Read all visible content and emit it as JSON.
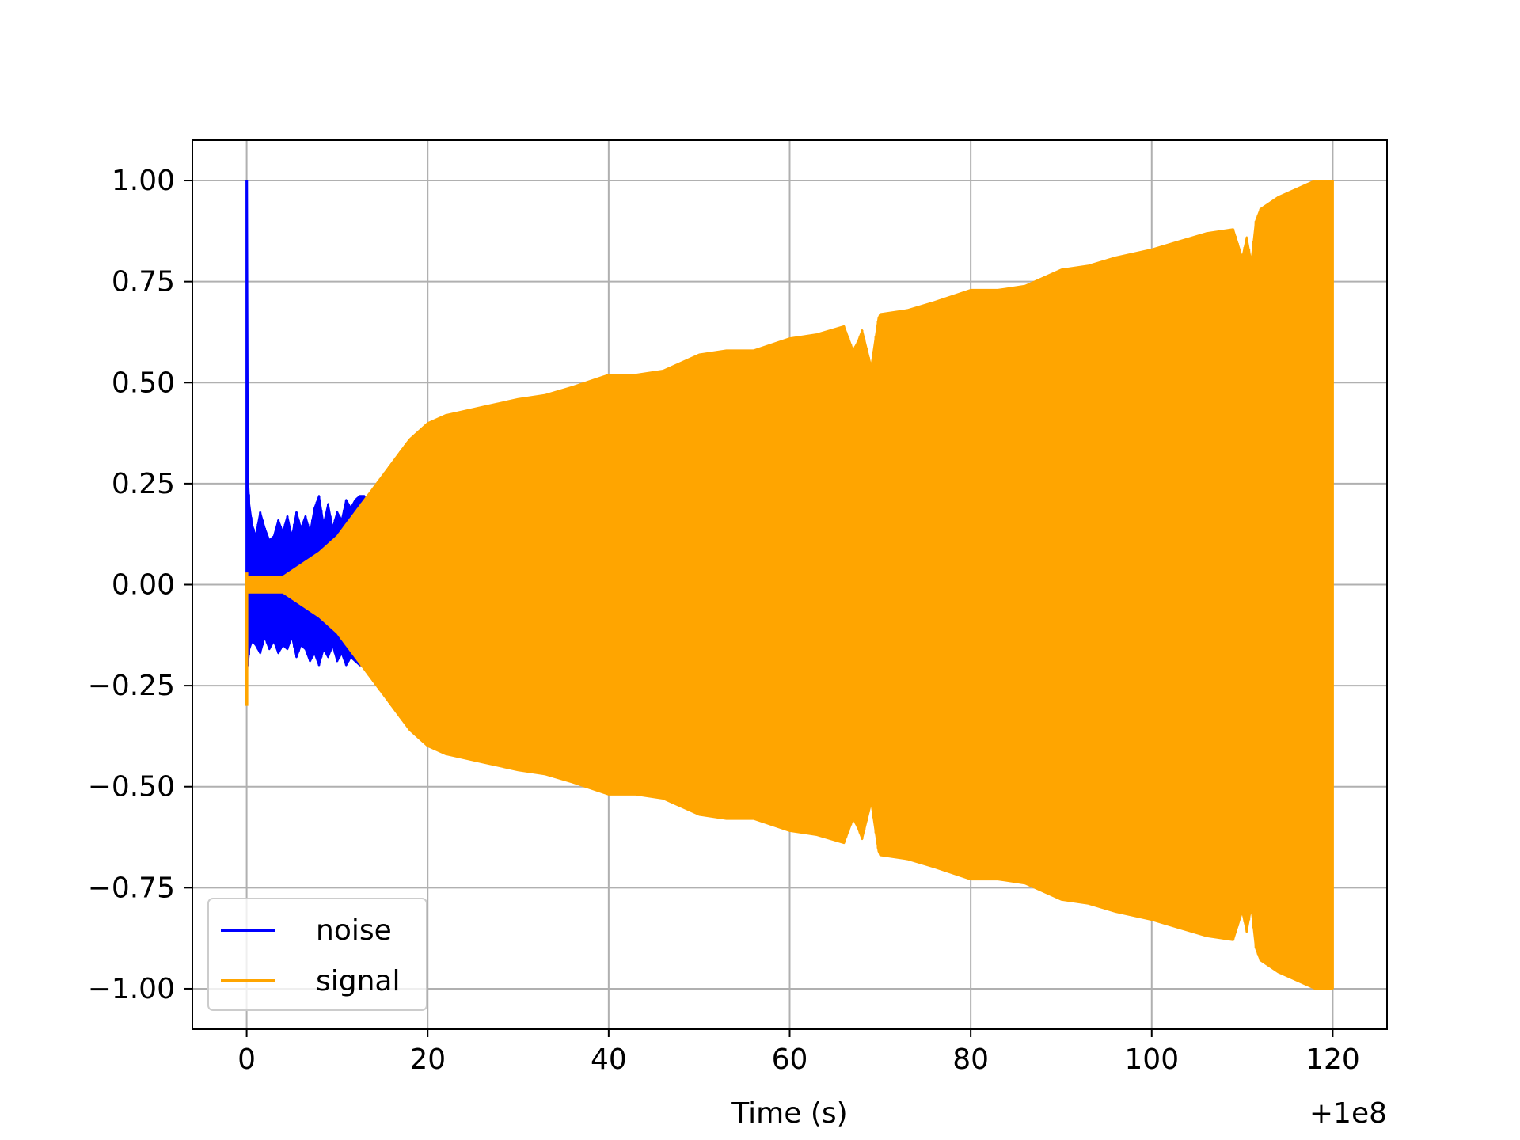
{
  "chart_data": {
    "type": "line",
    "title": "",
    "xlabel": "Time (s)",
    "ylabel": "",
    "x_offset_label": "+1e8",
    "xlim": [
      -6,
      126
    ],
    "ylim": [
      -1.1,
      1.1
    ],
    "xticks": [
      0,
      20,
      40,
      60,
      80,
      100,
      120
    ],
    "xtick_labels": [
      "0",
      "20",
      "40",
      "60",
      "80",
      "100",
      "120"
    ],
    "yticks": [
      1.0,
      0.75,
      0.5,
      0.25,
      0.0,
      -0.25,
      -0.5,
      -0.75,
      -1.0
    ],
    "ytick_labels": [
      "1.00",
      "0.75",
      "0.50",
      "0.25",
      "0.00",
      "−0.25",
      "−0.50",
      "−0.75",
      "−1.00"
    ],
    "grid": true,
    "legend_position": "lower-left",
    "series": [
      {
        "name": "noise",
        "color": "#0000ff",
        "envelope": {
          "x": [
            0,
            0.05,
            0.15,
            0.3,
            0.6,
            1,
            1.5,
            2,
            2.5,
            3,
            3.5,
            4,
            4.5,
            5,
            5.5,
            6,
            6.5,
            7,
            7.5,
            8,
            8.5,
            9,
            9.5,
            10,
            10.5,
            11,
            11.5,
            12,
            12.5,
            13
          ],
          "upper": [
            1.0,
            1.0,
            0.27,
            0.2,
            0.15,
            0.12,
            0.18,
            0.14,
            0.11,
            0.12,
            0.16,
            0.13,
            0.17,
            0.12,
            0.18,
            0.14,
            0.17,
            0.13,
            0.19,
            0.22,
            0.15,
            0.2,
            0.14,
            0.18,
            0.16,
            0.21,
            0.19,
            0.21,
            0.22,
            0.22
          ],
          "lower": [
            -0.18,
            -0.18,
            -0.2,
            -0.16,
            -0.14,
            -0.15,
            -0.17,
            -0.13,
            -0.16,
            -0.14,
            -0.17,
            -0.15,
            -0.16,
            -0.13,
            -0.18,
            -0.15,
            -0.16,
            -0.19,
            -0.17,
            -0.2,
            -0.16,
            -0.18,
            -0.15,
            -0.19,
            -0.17,
            -0.2,
            -0.18,
            -0.19,
            -0.2,
            -0.2
          ]
        }
      },
      {
        "name": "signal",
        "color": "#ffa500",
        "envelope": {
          "x": [
            0,
            2,
            4,
            6,
            8,
            10,
            11,
            12,
            13,
            14,
            15,
            16,
            17,
            18,
            19,
            20,
            22,
            24,
            26,
            28,
            30,
            33,
            36,
            40,
            43,
            46,
            50,
            53,
            56,
            60,
            63,
            66,
            67,
            67.5,
            68,
            69,
            69.8,
            70,
            73,
            76,
            80,
            83,
            86,
            90,
            93,
            96,
            100,
            103,
            106,
            109,
            110,
            110.5,
            111,
            111.5,
            112,
            114,
            116,
            118,
            119.5,
            120
          ],
          "upper": [
            0.02,
            0.02,
            0.02,
            0.05,
            0.08,
            0.12,
            0.15,
            0.18,
            0.21,
            0.24,
            0.27,
            0.3,
            0.33,
            0.36,
            0.38,
            0.4,
            0.42,
            0.43,
            0.44,
            0.45,
            0.46,
            0.47,
            0.49,
            0.52,
            0.52,
            0.53,
            0.57,
            0.58,
            0.58,
            0.61,
            0.62,
            0.64,
            0.58,
            0.6,
            0.63,
            0.54,
            0.66,
            0.67,
            0.68,
            0.7,
            0.73,
            0.73,
            0.74,
            0.78,
            0.79,
            0.81,
            0.83,
            0.85,
            0.87,
            0.88,
            0.81,
            0.86,
            0.8,
            0.9,
            0.93,
            0.96,
            0.98,
            1.0,
            1.0,
            1.0
          ],
          "lower": [
            -0.02,
            -0.02,
            -0.02,
            -0.05,
            -0.08,
            -0.12,
            -0.15,
            -0.18,
            -0.21,
            -0.24,
            -0.27,
            -0.3,
            -0.33,
            -0.36,
            -0.38,
            -0.4,
            -0.42,
            -0.43,
            -0.44,
            -0.45,
            -0.46,
            -0.47,
            -0.49,
            -0.52,
            -0.52,
            -0.53,
            -0.57,
            -0.58,
            -0.58,
            -0.61,
            -0.62,
            -0.64,
            -0.58,
            -0.6,
            -0.63,
            -0.54,
            -0.66,
            -0.67,
            -0.68,
            -0.7,
            -0.73,
            -0.73,
            -0.74,
            -0.78,
            -0.79,
            -0.81,
            -0.83,
            -0.85,
            -0.87,
            -0.88,
            -0.81,
            -0.86,
            -0.8,
            -0.9,
            -0.93,
            -0.96,
            -0.98,
            -1.0,
            -1.0,
            -1.0
          ]
        },
        "startup_spike": {
          "x": 0,
          "min": -0.3,
          "max": 0.03
        }
      }
    ]
  }
}
